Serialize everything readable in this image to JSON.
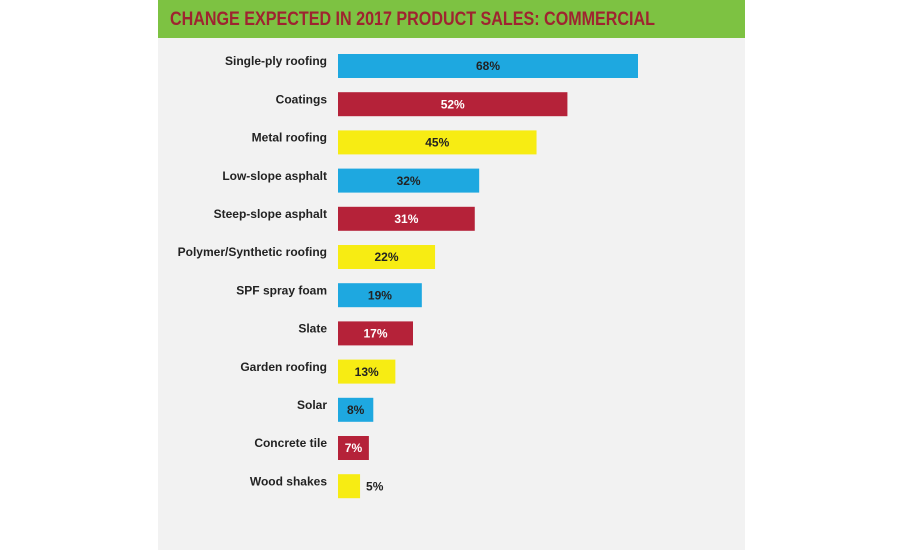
{
  "chart_data": {
    "type": "barh",
    "title": "CHANGE EXPECTED IN 2017 PRODUCT SALES: COMMERCIAL",
    "categories": [
      "Single-ply roofing",
      "Coatings",
      "Metal roofing",
      "Low-slope asphalt",
      "Steep-slope asphalt",
      "Polymer/Synthetic roofing",
      "SPF spray foam",
      "Slate",
      "Garden roofing",
      "Solar",
      "Concrete tile",
      "Wood shakes"
    ],
    "values": [
      68,
      52,
      45,
      32,
      31,
      22,
      19,
      17,
      13,
      8,
      7,
      5
    ],
    "value_labels": [
      "68%",
      "52%",
      "45%",
      "32%",
      "31%",
      "22%",
      "19%",
      "17%",
      "13%",
      "8%",
      "7%",
      "5%"
    ],
    "colors": [
      "#1ea8e0",
      "#b52239",
      "#f7ec13",
      "#1ea8e0",
      "#b52239",
      "#f7ec13",
      "#1ea8e0",
      "#b52239",
      "#f7ec13",
      "#1ea8e0",
      "#b52239",
      "#f7ec13"
    ]
  }
}
